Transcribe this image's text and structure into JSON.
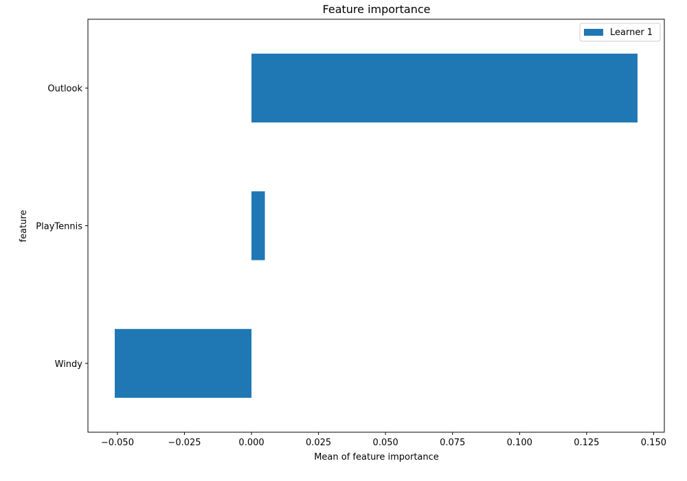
{
  "chart_data": {
    "type": "bar",
    "orientation": "horizontal",
    "title": "Feature importance",
    "xlabel": "Mean of feature importance",
    "ylabel": "feature",
    "categories": [
      "Outlook",
      "PlayTennis",
      "Windy"
    ],
    "series": [
      {
        "name": "Learner 1",
        "values": [
          0.144,
          0.005,
          -0.051
        ],
        "color": "#1f77b4"
      }
    ],
    "xlim": [
      -0.061,
      0.154
    ],
    "xticks": [
      -0.05,
      -0.025,
      0.0,
      0.025,
      0.05,
      0.075,
      0.1,
      0.125,
      0.15
    ],
    "xtick_labels": [
      "−0.050",
      "−0.025",
      "0.000",
      "0.025",
      "0.050",
      "0.075",
      "0.100",
      "0.125",
      "0.150"
    ],
    "grid": false,
    "legend": "top-right"
  }
}
